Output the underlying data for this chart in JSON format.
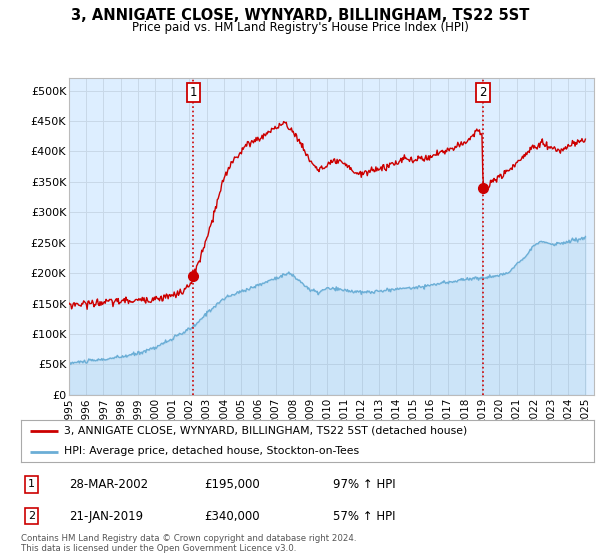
{
  "title": "3, ANNIGATE CLOSE, WYNYARD, BILLINGHAM, TS22 5ST",
  "subtitle": "Price paid vs. HM Land Registry's House Price Index (HPI)",
  "xlim_start": 1995.0,
  "xlim_end": 2025.5,
  "ylim_min": 0,
  "ylim_max": 520000,
  "yticks": [
    0,
    50000,
    100000,
    150000,
    200000,
    250000,
    300000,
    350000,
    400000,
    450000,
    500000
  ],
  "ytick_labels": [
    "£0",
    "£50K",
    "£100K",
    "£150K",
    "£200K",
    "£250K",
    "£300K",
    "£350K",
    "£400K",
    "£450K",
    "£500K"
  ],
  "hpi_color": "#6baed6",
  "price_color": "#cc0000",
  "vline_color": "#cc0000",
  "chart_bg": "#ddeeff",
  "marker1_date": 2002.23,
  "marker1_price": 195000,
  "marker2_date": 2019.05,
  "marker2_price": 340000,
  "legend_label_price": "3, ANNIGATE CLOSE, WYNYARD, BILLINGHAM, TS22 5ST (detached house)",
  "legend_label_hpi": "HPI: Average price, detached house, Stockton-on-Tees",
  "table_row1": [
    "1",
    "28-MAR-2002",
    "£195,000",
    "97% ↑ HPI"
  ],
  "table_row2": [
    "2",
    "21-JAN-2019",
    "£340,000",
    "57% ↑ HPI"
  ],
  "footer": "Contains HM Land Registry data © Crown copyright and database right 2024.\nThis data is licensed under the Open Government Licence v3.0.",
  "background_color": "#ffffff",
  "grid_color": "#c8d8e8"
}
